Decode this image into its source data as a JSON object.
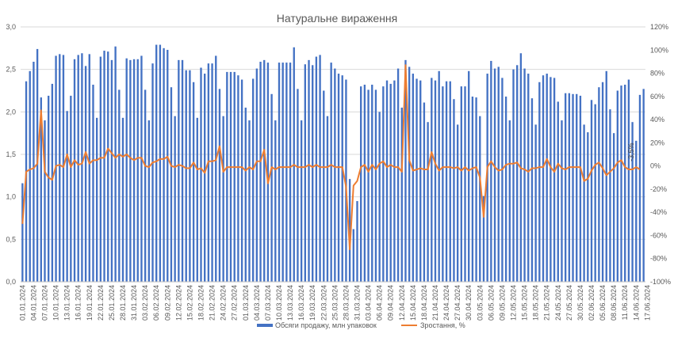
{
  "chart_data": {
    "type": "bar",
    "title": "Натуральне вираження",
    "y_left": {
      "min": 0,
      "max": 3.0,
      "ticks": [
        "0,0",
        "0,5",
        "1,0",
        "1,5",
        "2,0",
        "2,5",
        "3,0"
      ]
    },
    "y_right": {
      "min": -100,
      "max": 120,
      "ticks": [
        "-100%",
        "-80%",
        "-60%",
        "-40%",
        "-20%",
        "0%",
        "20%",
        "40%",
        "60%",
        "80%",
        "100%",
        "120%"
      ]
    },
    "x_tick_labels": [
      "01.01.2024",
      "04.01.2024",
      "07.01.2024",
      "10.01.2024",
      "13.01.2024",
      "16.01.2024",
      "19.01.2024",
      "22.01.2024",
      "25.01.2024",
      "28.01.2024",
      "31.01.2024",
      "03.02.2024",
      "06.02.2024",
      "09.02.2024",
      "12.02.2024",
      "15.02.2024",
      "18.02.2024",
      "21.02.2024",
      "24.02.2024",
      "27.02.2024",
      "01.03.2024",
      "04.03.2024",
      "07.03.2024",
      "10.03.2024",
      "13.03.2024",
      "16.03.2024",
      "19.03.2024",
      "22.03.2024",
      "25.03.2024",
      "28.03.2024",
      "31.03.2024",
      "03.04.2024",
      "06.04.2024",
      "09.04.2024",
      "12.04.2024",
      "15.04.2024",
      "18.04.2024",
      "21.04.2024",
      "24.04.2024",
      "27.04.2024",
      "30.04.2024",
      "03.05.2024",
      "06.05.2024",
      "09.05.2024",
      "12.05.2024",
      "15.05.2024",
      "18.05.2024",
      "21.05.2024",
      "24.05.2024",
      "27.05.2024",
      "30.05.2024",
      "02.06.2024",
      "05.06.2024",
      "08.06.2024",
      "11.06.2024",
      "14.06.2024",
      "17.06.2024"
    ],
    "series": [
      {
        "name": "Обсяги продажу, млн упаковок",
        "type": "bar",
        "axis": "left",
        "values": [
          1.16,
          2.36,
          2.48,
          2.59,
          2.74,
          2.17,
          1.9,
          2.19,
          2.33,
          2.66,
          2.68,
          2.67,
          2.01,
          2.19,
          2.62,
          2.67,
          2.69,
          2.54,
          2.68,
          2.32,
          1.93,
          2.65,
          2.72,
          2.71,
          2.61,
          2.77,
          2.26,
          1.93,
          2.63,
          2.61,
          2.62,
          2.62,
          2.66,
          2.26,
          1.9,
          2.57,
          2.79,
          2.79,
          2.75,
          2.73,
          2.29,
          1.95,
          2.61,
          2.61,
          2.49,
          2.49,
          2.35,
          1.93,
          2.52,
          2.45,
          2.57,
          2.57,
          2.66,
          2.27,
          1.95,
          2.47,
          2.47,
          2.47,
          2.43,
          2.38,
          2.05,
          1.9,
          2.39,
          2.51,
          2.59,
          2.61,
          2.58,
          2.21,
          1.9,
          2.58,
          2.58,
          2.58,
          2.58,
          2.76,
          2.27,
          1.9,
          2.56,
          2.61,
          2.55,
          2.65,
          2.67,
          2.25,
          1.95,
          2.58,
          2.51,
          2.45,
          2.43,
          2.38,
          1.21,
          0.62,
          0.95,
          2.3,
          2.32,
          2.26,
          2.32,
          2.26,
          2.0,
          2.3,
          2.37,
          2.33,
          2.37,
          2.51,
          2.05,
          2.61,
          2.53,
          2.45,
          2.39,
          2.37,
          2.11,
          1.88,
          2.4,
          2.37,
          2.48,
          2.3,
          2.36,
          2.36,
          2.15,
          1.85,
          2.3,
          2.3,
          2.48,
          2.18,
          2.17,
          1.95,
          1.01,
          2.45,
          2.6,
          2.51,
          2.53,
          2.4,
          2.18,
          1.9,
          2.5,
          2.55,
          2.69,
          2.51,
          2.45,
          2.16,
          1.85,
          2.35,
          2.43,
          2.45,
          2.41,
          2.4,
          2.12,
          1.9,
          2.22,
          2.22,
          2.21,
          2.21,
          2.19,
          1.85,
          1.76,
          2.14,
          2.09,
          2.29,
          2.35,
          2.48,
          2.03,
          1.75,
          2.25,
          2.31,
          2.32,
          2.38,
          1.88,
          1.66,
          2.2,
          2.27
        ]
      },
      {
        "name": "Зростання, %",
        "type": "line",
        "axis": "right",
        "values": [
          -50,
          -5,
          -3,
          -2,
          2,
          48,
          -5,
          -10,
          -12,
          0,
          1,
          -1,
          10,
          -1,
          5,
          1,
          2,
          12,
          2,
          5,
          5,
          7,
          7,
          15,
          11,
          7,
          10,
          8,
          10,
          7,
          5,
          7,
          7,
          0,
          -1,
          3,
          4,
          6,
          6,
          8,
          0,
          -1,
          1,
          0,
          -2,
          -2,
          3,
          -3,
          -2,
          -6,
          4,
          4,
          5,
          17,
          -5,
          -1,
          -1,
          -1,
          -1,
          -1,
          -4,
          -1,
          -3,
          4,
          4,
          14,
          -15,
          -1,
          -3,
          -1,
          -1,
          -1,
          -1,
          1,
          -1,
          -1,
          -1,
          1,
          -1,
          1,
          -1,
          -1,
          -1,
          1,
          -1,
          -1,
          -1,
          -18,
          -72,
          -17,
          -13,
          -1,
          1,
          -5,
          1,
          -3,
          2,
          4,
          -1,
          1,
          -1,
          -1,
          -5,
          87,
          5,
          -4,
          -3,
          -2,
          -3,
          -3,
          12,
          2,
          -4,
          -1,
          -1,
          -1,
          -2,
          -1,
          -4,
          -1,
          -4,
          -2,
          -1,
          -10,
          -44,
          -1,
          4,
          -1,
          -4,
          -3,
          1,
          2,
          2,
          3,
          -2,
          -3,
          -5,
          -2,
          -2,
          -1,
          -1,
          6,
          -1,
          -5,
          2,
          -2,
          -3,
          -1,
          -1,
          -1,
          -1,
          -13,
          -11,
          -4,
          1,
          3,
          -2,
          -8,
          -5,
          -2,
          3,
          5,
          -1,
          -3,
          -3,
          -1,
          -3
        ]
      }
    ],
    "annotation": "-3,5%",
    "legend_position": "bottom",
    "colors": {
      "bar": "#4472C4",
      "line": "#ED7D31",
      "grid": "#D9D9D9",
      "text": "#595959"
    }
  }
}
